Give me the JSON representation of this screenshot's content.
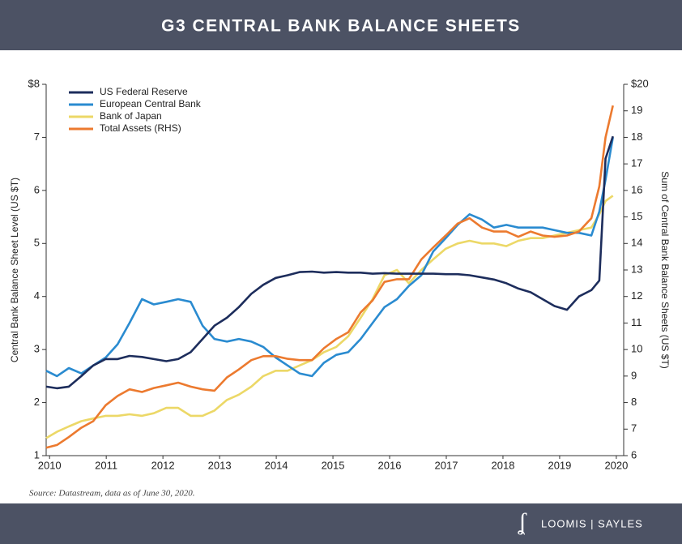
{
  "chart_data": {
    "type": "line",
    "title": "G3 CENTRAL BANK BALANCE SHEETS",
    "ylabel": "Central Bank Balance Sheet Level (US $T)",
    "y2label": "Sum of Central Bank Balance Sheets (US $T)",
    "source": "Source: Datastream, data as of June 30, 2020.",
    "legend": "upper left",
    "x": [
      2009.94,
      2010.13,
      2010.34,
      2010.56,
      2010.77,
      2010.99,
      2011.2,
      2011.41,
      2011.63,
      2011.84,
      2012.06,
      2012.27,
      2012.49,
      2012.7,
      2012.91,
      2013.13,
      2013.34,
      2013.56,
      2013.77,
      2013.99,
      2014.2,
      2014.41,
      2014.63,
      2014.84,
      2015.06,
      2015.27,
      2015.49,
      2015.7,
      2015.91,
      2016.13,
      2016.34,
      2016.56,
      2016.77,
      2016.99,
      2017.2,
      2017.41,
      2017.63,
      2017.84,
      2018.06,
      2018.27,
      2018.49,
      2018.7,
      2018.91,
      2019.13,
      2019.34,
      2019.56,
      2019.7,
      2019.81,
      2019.94
    ],
    "xlim": [
      2009.94,
      2020.13
    ],
    "xticks": [
      2010,
      2011,
      2012,
      2013,
      2014,
      2015,
      2016,
      2017,
      2018,
      2019,
      2020
    ],
    "ylim": [
      1,
      8
    ],
    "yticks": [
      1,
      2,
      3,
      4,
      5,
      6,
      7,
      {
        "value": 8,
        "label": "$8"
      }
    ],
    "y2lim": [
      6,
      20
    ],
    "y2ticks": [
      6,
      7,
      8,
      9,
      10,
      11,
      12,
      13,
      14,
      15,
      16,
      17,
      18,
      19,
      {
        "value": 20,
        "label": "$20"
      }
    ],
    "series": [
      {
        "name": "US Federal Reserve",
        "color": "#1d2d5c",
        "values": [
          2.3,
          2.27,
          2.3,
          2.5,
          2.7,
          2.82,
          2.82,
          2.88,
          2.86,
          2.82,
          2.78,
          2.82,
          2.95,
          3.2,
          3.45,
          3.6,
          3.8,
          4.05,
          4.22,
          4.35,
          4.4,
          4.46,
          4.47,
          4.45,
          4.46,
          4.45,
          4.45,
          4.43,
          4.44,
          4.43,
          4.43,
          4.43,
          4.43,
          4.42,
          4.42,
          4.4,
          4.36,
          4.32,
          4.25,
          4.15,
          4.08,
          3.95,
          3.82,
          3.75,
          4.0,
          4.12,
          4.3,
          6.6,
          7.02
        ]
      },
      {
        "name": "European Central Bank",
        "color": "#2a8bd0",
        "values": [
          2.6,
          2.5,
          2.65,
          2.55,
          2.7,
          2.85,
          3.1,
          3.5,
          3.95,
          3.85,
          3.9,
          3.95,
          3.9,
          3.45,
          3.2,
          3.15,
          3.2,
          3.15,
          3.05,
          2.85,
          2.7,
          2.55,
          2.5,
          2.75,
          2.9,
          2.95,
          3.2,
          3.5,
          3.8,
          3.95,
          4.2,
          4.4,
          4.85,
          5.1,
          5.35,
          5.55,
          5.45,
          5.3,
          5.35,
          5.3,
          5.3,
          5.3,
          5.25,
          5.2,
          5.2,
          5.15,
          5.6,
          6.2,
          7.0
        ]
      },
      {
        "name": "Bank of Japan",
        "color": "#ecd867",
        "values": [
          1.33,
          1.45,
          1.55,
          1.65,
          1.7,
          1.75,
          1.75,
          1.78,
          1.75,
          1.8,
          1.9,
          1.9,
          1.75,
          1.75,
          1.85,
          2.05,
          2.15,
          2.3,
          2.5,
          2.6,
          2.6,
          2.7,
          2.8,
          2.95,
          3.05,
          3.25,
          3.6,
          3.95,
          4.4,
          4.5,
          4.25,
          4.5,
          4.7,
          4.9,
          5.0,
          5.05,
          5.0,
          5.0,
          4.95,
          5.05,
          5.1,
          5.1,
          5.15,
          5.2,
          5.25,
          5.3,
          5.55,
          5.8,
          5.9
        ]
      },
      {
        "name": "Total Assets  (RHS)",
        "color": "#ec7a2f",
        "axis": "y2",
        "values": [
          6.3,
          6.4,
          6.7,
          7.05,
          7.3,
          7.9,
          8.25,
          8.5,
          8.4,
          8.55,
          8.65,
          8.75,
          8.6,
          8.5,
          8.45,
          8.95,
          9.25,
          9.6,
          9.75,
          9.75,
          9.65,
          9.6,
          9.6,
          10.05,
          10.4,
          10.65,
          11.4,
          11.85,
          12.55,
          12.65,
          12.65,
          13.4,
          13.85,
          14.3,
          14.75,
          14.95,
          14.6,
          14.45,
          14.45,
          14.25,
          14.45,
          14.3,
          14.25,
          14.3,
          14.45,
          14.95,
          16.15,
          18.0,
          19.2
        ]
      }
    ]
  },
  "footer": {
    "brand": "LOOMIS | SAYLES"
  }
}
